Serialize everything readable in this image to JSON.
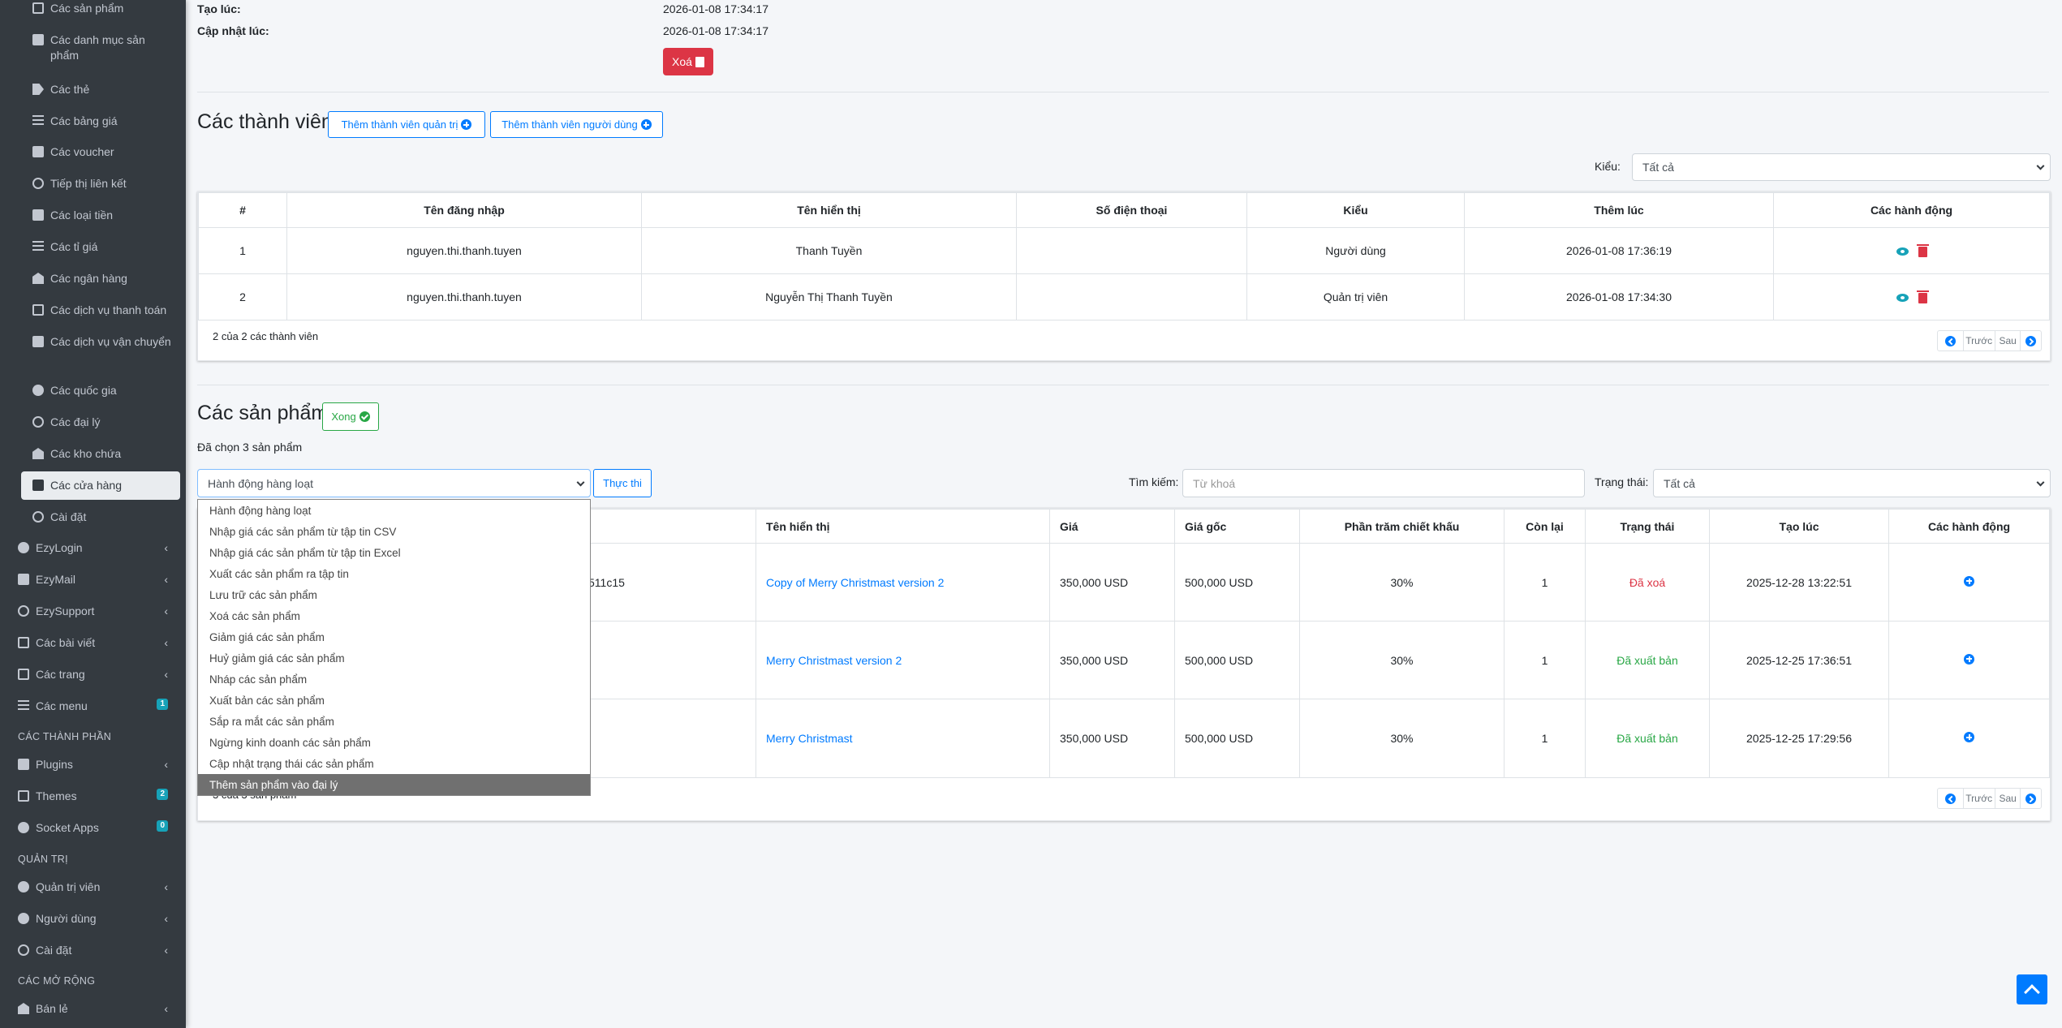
{
  "sidebar": {
    "sub_items": [
      {
        "label": "Các sản phẩm",
        "icon": "boxes-icon"
      },
      {
        "label": "Các danh mục sản phẩm",
        "icon": "clipboard-icon"
      },
      {
        "label": "Các thẻ",
        "icon": "tags-icon"
      },
      {
        "label": "Các bảng giá",
        "icon": "list-icon"
      },
      {
        "label": "Các voucher",
        "icon": "ticket-icon"
      },
      {
        "label": "Tiếp thị liên kết",
        "icon": "link-icon"
      },
      {
        "label": "Các loại tiền",
        "icon": "money-icon"
      },
      {
        "label": "Các tỉ giá",
        "icon": "exchange-icon"
      },
      {
        "label": "Các ngân hàng",
        "icon": "bank-icon"
      },
      {
        "label": "Các dịch vụ thanh toán",
        "icon": "credit-card-icon"
      },
      {
        "label": "Các dịch vụ vận chuyển",
        "icon": "truck-icon"
      },
      {
        "label": "Các quốc gia",
        "icon": "globe-icon"
      },
      {
        "label": "Các đại lý",
        "icon": "branch-icon"
      },
      {
        "label": "Các kho chứa",
        "icon": "warehouse-icon"
      },
      {
        "label": "Các cửa hàng",
        "icon": "store-icon"
      },
      {
        "label": "Cài đặt",
        "icon": "tools-icon"
      }
    ],
    "main_items": [
      {
        "label": "EzyLogin",
        "icon": "user-circle-icon"
      },
      {
        "label": "EzyMail",
        "icon": "envelope-icon"
      },
      {
        "label": "EzySupport",
        "icon": "support-icon"
      },
      {
        "label": "Các bài viết",
        "icon": "newspaper-icon"
      },
      {
        "label": "Các trang",
        "icon": "page-icon"
      },
      {
        "label": "Các menu",
        "icon": "bars-icon",
        "badge": "1"
      }
    ],
    "header_components": "CÁC THÀNH PHẦN",
    "components": [
      {
        "label": "Plugins",
        "icon": "plug-icon"
      },
      {
        "label": "Themes",
        "icon": "theme-icon",
        "badge": "2"
      },
      {
        "label": "Socket Apps",
        "icon": "socket-icon",
        "badge": "0"
      }
    ],
    "header_admin": "QUẢN TRỊ",
    "admin": [
      {
        "label": "Quản trị viên",
        "icon": "admin-icon"
      },
      {
        "label": "Người dùng",
        "icon": "users-icon"
      },
      {
        "label": "Cài đặt",
        "icon": "tools-icon"
      }
    ],
    "header_ext": "CÁC MỞ RỘNG",
    "ext": [
      {
        "label": "Bán lẻ",
        "icon": "store-icon"
      }
    ]
  },
  "info": {
    "created_label": "Tạo lúc:",
    "created_value": "2026-01-08 17:34:17",
    "updated_label": "Cập nhật lúc:",
    "updated_value": "2026-01-08 17:34:17",
    "delete_label": "Xoá"
  },
  "members": {
    "title": "Các thành viên",
    "add_admin": "Thêm thành viên quản trị",
    "add_user": "Thêm thành viên người dùng",
    "type_label": "Kiểu:",
    "type_value": "Tất cả",
    "columns": [
      "#",
      "Tên đăng nhập",
      "Tên hiển thị",
      "Số điện thoại",
      "Kiểu",
      "Thêm lúc",
      "Các hành động"
    ],
    "rows": [
      {
        "no": "1",
        "username": "nguyen.thi.thanh.tuyen",
        "display": "Thanh Tuyền",
        "phone": "",
        "type": "Người dùng",
        "added": "2026-01-08 17:36:19"
      },
      {
        "no": "2",
        "username": "nguyen.thi.thanh.tuyen",
        "display": "Nguyễn Thị Thanh Tuyền",
        "phone": "",
        "type": "Quản trị viên",
        "added": "2026-01-08 17:34:30"
      }
    ],
    "footer": "2 của 2 các thành viên",
    "prev": "Trước",
    "next": "Sau"
  },
  "products": {
    "title": "Các sản phẩm",
    "done_label": "Xong",
    "selected_text": "Đã chọn 3 sản phẩm",
    "bulk_value": "Hành động hàng loạt",
    "execute_label": "Thực thi",
    "search_label": "Tìm kiếm:",
    "search_placeholder": "Từ khoá",
    "status_label": "Trạng thái:",
    "status_value": "Tất cả",
    "columns": [
      "Tên hiển thị",
      "Giá",
      "Giá gốc",
      "Phần trăm chiết khấu",
      "Còn lại",
      "Trạng thái",
      "Tạo lúc",
      "Các hành động"
    ],
    "first_cell_fragment": "511c15",
    "rows": [
      {
        "name": "Copy of Merry Christmast version 2",
        "price": "350,000 USD",
        "original": "500,000 USD",
        "discount": "30%",
        "remain": "1",
        "status": "Đã xoá",
        "created": "2025-12-28 13:22:51"
      },
      {
        "name": "Merry Christmast version 2",
        "price": "350,000 USD",
        "original": "500,000 USD",
        "discount": "30%",
        "remain": "1",
        "status": "Đã xuất bản",
        "created": "2025-12-25 17:36:51"
      },
      {
        "name": "Merry Christmast",
        "price": "350,000 USD",
        "original": "500,000 USD",
        "discount": "30%",
        "remain": "1",
        "status": "Đã xuất bản",
        "created": "2025-12-25 17:29:56"
      }
    ],
    "footer_fragment": "3 của 3 sản phẩm",
    "prev": "Trước",
    "next": "Sau"
  },
  "bulk_options": [
    "Hành động hàng loạt",
    "Nhập giá các sản phẩm từ tập tin CSV",
    "Nhập giá các sản phẩm từ tập tin Excel",
    "Xuất các sản phẩm ra tập tin",
    "Lưu trữ các sản phẩm",
    "Xoá các sản phẩm",
    "Giảm giá các sản phẩm",
    "Huỷ giảm giá các sản phẩm",
    "Nháp các sản phẩm",
    "Xuất bản các sản phẩm",
    "Sắp ra mắt các sản phẩm",
    "Ngừng kinh doanh các sản phẩm",
    "Cập nhật trạng thái các sản phẩm",
    "Thêm sản phẩm vào đại lý"
  ],
  "colors": {
    "sidebar_bg": "#343a40",
    "primary": "#007bff",
    "danger": "#dc3545",
    "success": "#28a745",
    "info": "#17a2b8"
  }
}
